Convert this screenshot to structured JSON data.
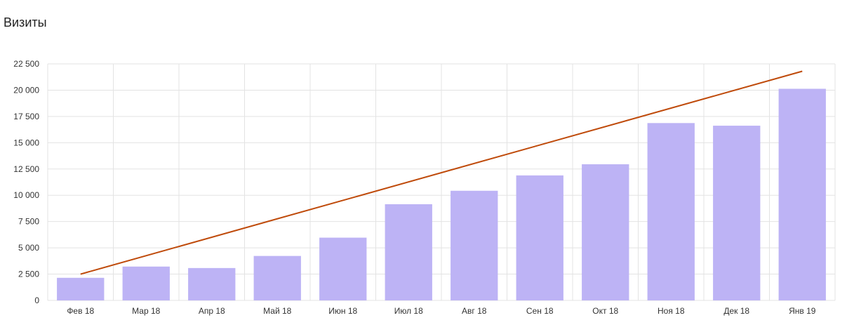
{
  "title": "Визиты",
  "chart_data": {
    "type": "bar",
    "title": "Визиты",
    "xlabel": "",
    "ylabel": "",
    "categories": [
      "Фев 18",
      "Мар 18",
      "Апр 18",
      "Май 18",
      "Июн 18",
      "Июл 18",
      "Авг 18",
      "Сен 18",
      "Окт 18",
      "Ноя 18",
      "Дек 18",
      "Янв 19"
    ],
    "values": [
      2150,
      3220,
      3080,
      4230,
      5970,
      9150,
      10430,
      11890,
      12950,
      16870,
      16620,
      20130
    ],
    "y_tick_labels": [
      "0",
      "2 500",
      "5 000",
      "7 500",
      "10 000",
      "12 500",
      "15 000",
      "17 500",
      "20 000",
      "22 500"
    ],
    "y_ticks": [
      0,
      2500,
      5000,
      7500,
      10000,
      12500,
      15000,
      17500,
      20000,
      22500
    ],
    "ylim": [
      0,
      22500
    ],
    "trendline": {
      "start": 2500,
      "end": 21800
    },
    "grid": true,
    "legend": "none",
    "colors": {
      "bar": "#bdb3f5",
      "trend": "#bf4a0a",
      "grid": "#e3e3e3"
    }
  }
}
